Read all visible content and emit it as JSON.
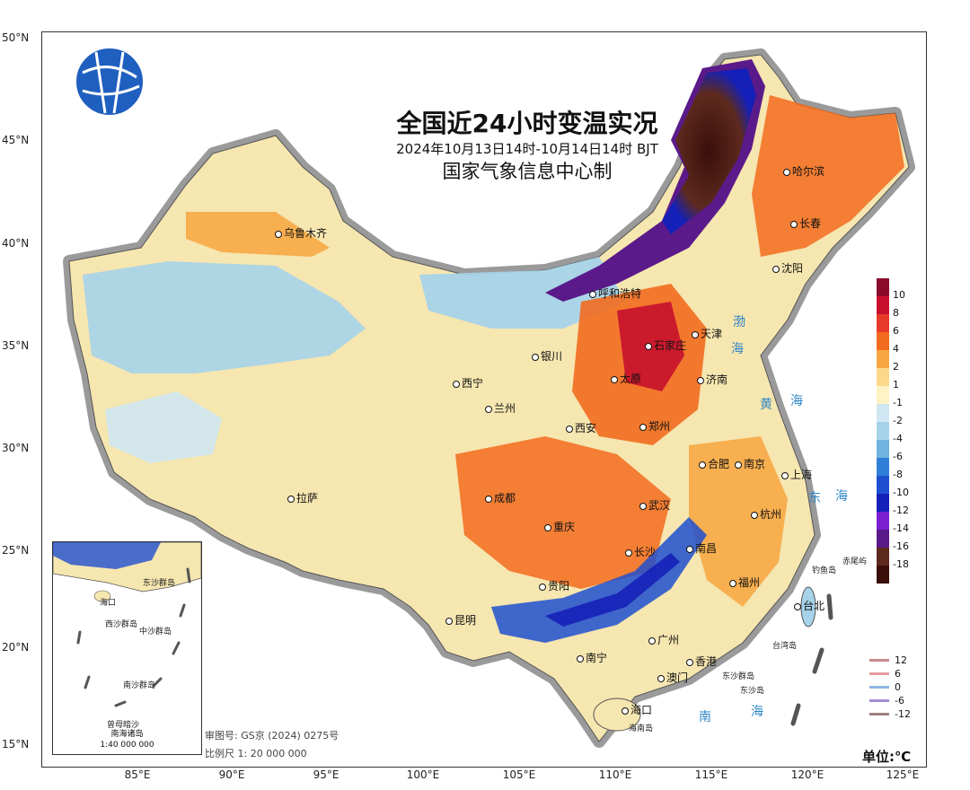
{
  "map": {
    "title": "全国近24小时变温实况",
    "subtitle": "2024年10月13日14时-10月14日14时  BJT",
    "producer": "国家气象信息中心制",
    "approval": "审图号: GS京 (2024) 0275号",
    "scale": "比例尺  1: 20 000 000",
    "unit": "单位:℃",
    "logo_icon": "network-globe-logo"
  },
  "lat_labels": [
    "50°N",
    "45°N",
    "40°N",
    "35°N",
    "30°N",
    "25°N",
    "20°N",
    "15°N"
  ],
  "lon_labels": [
    "85°E",
    "90°E",
    "95°E",
    "100°E",
    "105°E",
    "110°E",
    "115°E",
    "120°E",
    "125°E"
  ],
  "legend": {
    "ticks": [
      "10",
      "8",
      "6",
      "4",
      "2",
      "1",
      "-1",
      "-2",
      "-4",
      "-6",
      "-8",
      "-10",
      "-12",
      "-14",
      "-16",
      "-18"
    ],
    "colors": [
      "#8b0a2a",
      "#c8102e",
      "#e8392b",
      "#f26b1f",
      "#f7a540",
      "#fbd88a",
      "#fdf3c4",
      "#cfe7f2",
      "#a6d3ea",
      "#6fb3e0",
      "#2f7fd8",
      "#1f4fd0",
      "#1520b8",
      "#7a1fd1",
      "#5a1a8a",
      "#5e2a1e",
      "#3a0f0a"
    ]
  },
  "line_legend": {
    "items": [
      {
        "label": "12",
        "color": "#c98b8b"
      },
      {
        "label": "6",
        "color": "#e89a9a"
      },
      {
        "label": "0",
        "color": "#8fb8e6"
      },
      {
        "label": "-6",
        "color": "#a78bd8"
      },
      {
        "label": "-12",
        "color": "#a08080"
      }
    ]
  },
  "cities": [
    {
      "name": "哈尔滨"
    },
    {
      "name": "长春"
    },
    {
      "name": "沈阳"
    },
    {
      "name": "乌鲁木齐"
    },
    {
      "name": "呼和浩特"
    },
    {
      "name": "天津"
    },
    {
      "name": "石家庄"
    },
    {
      "name": "银川"
    },
    {
      "name": "太原"
    },
    {
      "name": "济南"
    },
    {
      "name": "西宁"
    },
    {
      "name": "兰州"
    },
    {
      "name": "西安"
    },
    {
      "name": "郑州"
    },
    {
      "name": "合肥"
    },
    {
      "name": "南京"
    },
    {
      "name": "上海"
    },
    {
      "name": "拉萨"
    },
    {
      "name": "成都"
    },
    {
      "name": "武汉"
    },
    {
      "name": "重庆"
    },
    {
      "name": "杭州"
    },
    {
      "name": "长沙"
    },
    {
      "name": "南昌"
    },
    {
      "name": "贵阳"
    },
    {
      "name": "福州"
    },
    {
      "name": "台北"
    },
    {
      "name": "昆明"
    },
    {
      "name": "广州"
    },
    {
      "name": "南宁"
    },
    {
      "name": "香港"
    },
    {
      "name": "澳门"
    },
    {
      "name": "海口"
    }
  ],
  "seas": [
    "渤",
    "海",
    "黄",
    "海",
    "东",
    "海",
    "南",
    "海"
  ],
  "islands": [
    "钓鱼岛",
    "赤尾屿",
    "台湾岛",
    "东沙群岛",
    "东沙岛",
    "海南岛"
  ],
  "inset": {
    "caption_line1": "南海诸岛",
    "caption_line2": "1:40 000 000",
    "labels": [
      "西沙群岛",
      "中沙群岛",
      "南沙群岛",
      "曾母暗沙",
      "东沙群岛",
      "海口"
    ]
  }
}
